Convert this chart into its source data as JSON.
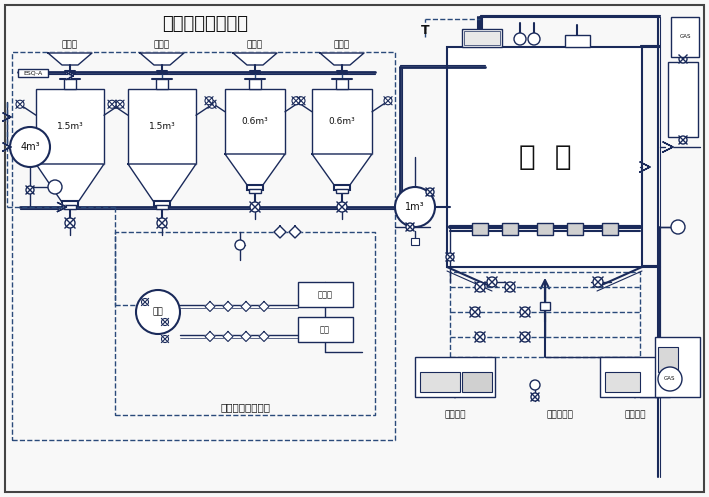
{
  "title": "浓相气力输送系统",
  "bg_color": "#f8f8f8",
  "line_color": "#1a2a5a",
  "dash_color": "#2a4a7a",
  "text_color": "#111111",
  "field_labels": [
    "一电场",
    "二电场",
    "三电场",
    "四电场"
  ],
  "tank_labels": [
    "1.5m³",
    "1.5m³",
    "0.6m³",
    "0.6m³"
  ],
  "hui_ku_label": "灰  库",
  "air_supply_label": "气力输送供气系统",
  "zong_guan_label": "总筗",
  "kong_ya_ji_label": "空压机",
  "bei_yong_label": "备用",
  "tank4m3_label": "4m³",
  "tank1m3_label": "1m³",
  "wet_truck_label": "湿灰装车",
  "pressure_water_label": "压力水进口",
  "dry_truck_label": "干灰装车",
  "esqa_label": "ESQ-A"
}
